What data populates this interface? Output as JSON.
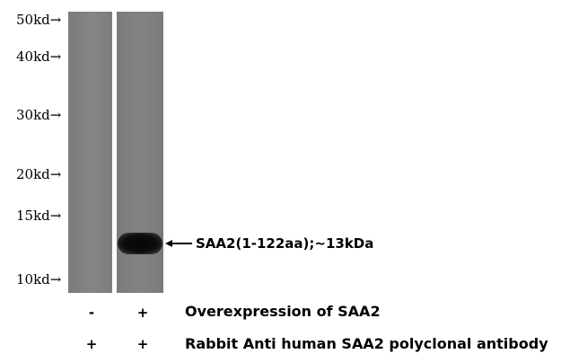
{
  "markers": [
    {
      "label": "50kd→"
    },
    {
      "label": "40kd→"
    },
    {
      "label": "30kd→"
    },
    {
      "label": "20kd→"
    },
    {
      "label": "15kd→"
    },
    {
      "label": "10kd→"
    }
  ],
  "band_label": "SAA2(1-122aa);~13kDa",
  "conditions": [
    {
      "label": "Overexpression of SAA2",
      "lane1": "-",
      "lane2": "+"
    },
    {
      "label": "Rabbit Anti human SAA2 polyclonal antibody",
      "lane1": "+",
      "lane2": "+"
    }
  ],
  "colors": {
    "blot": "#808080",
    "band": "#0a0a0a",
    "background": "#ffffff"
  }
}
